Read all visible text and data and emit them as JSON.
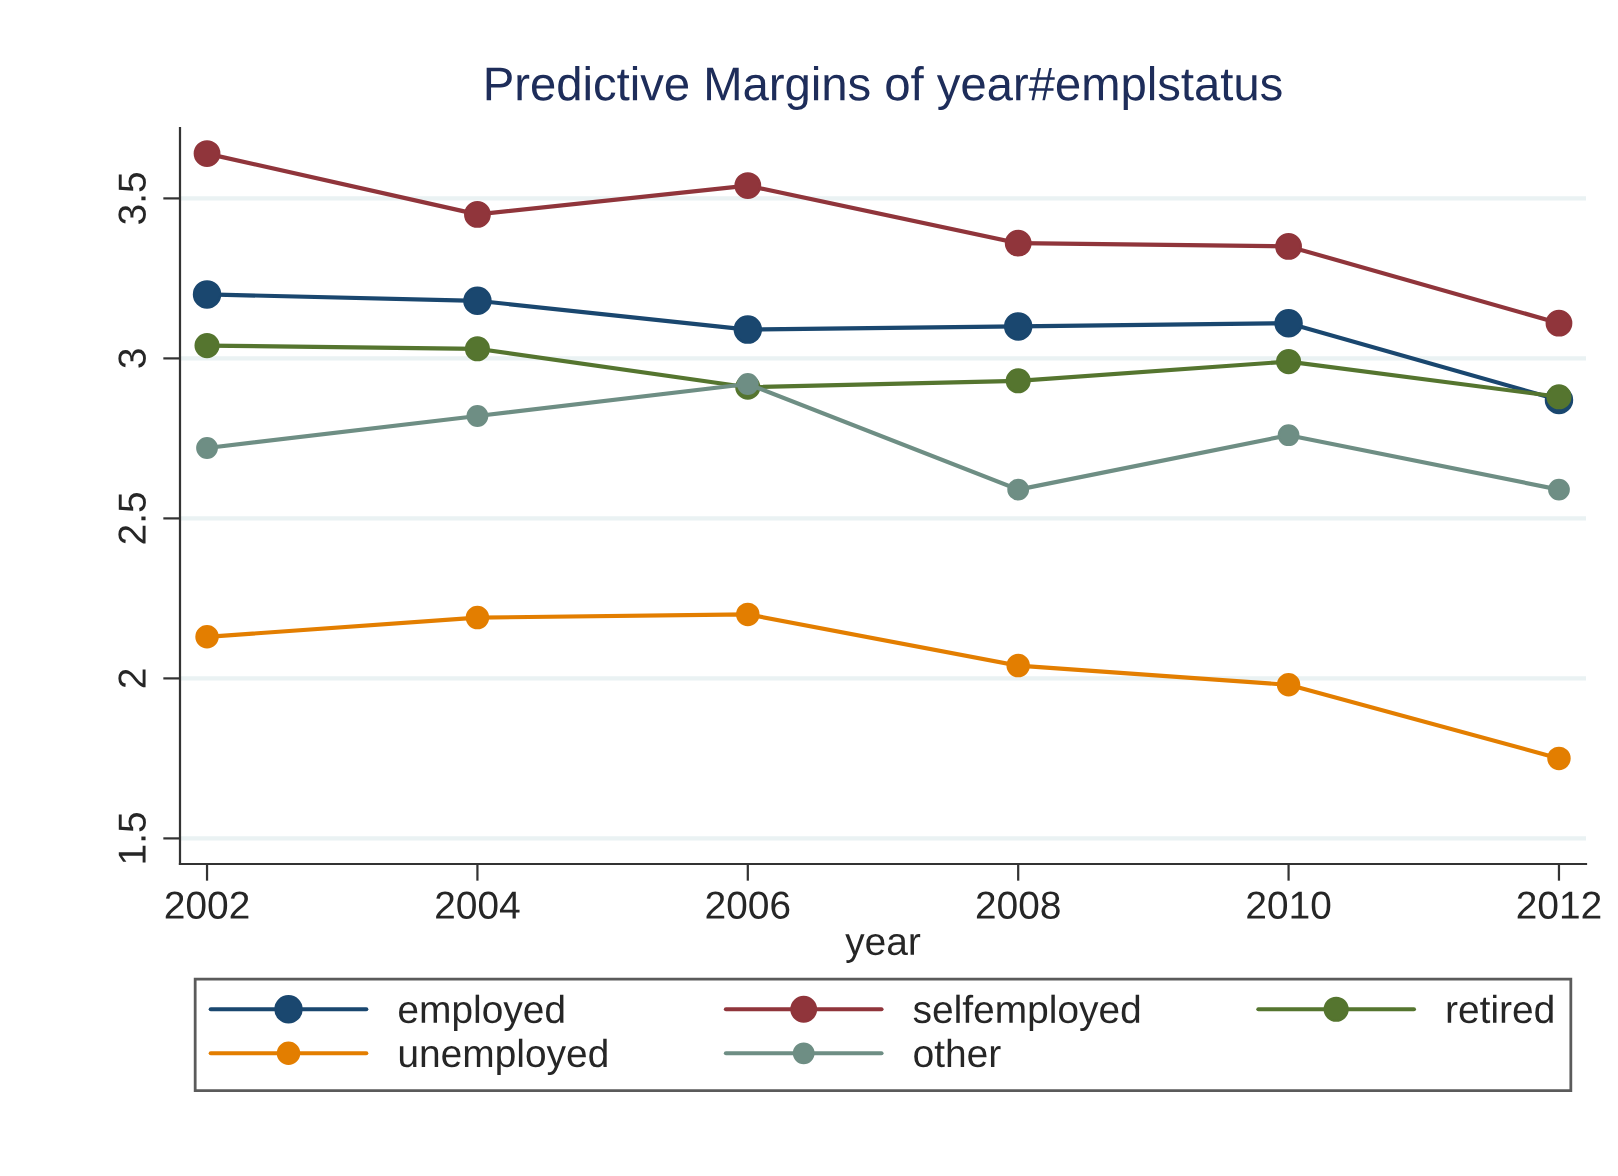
{
  "chart_data": {
    "type": "line",
    "title": "Predictive Margins of year#emplstatus",
    "xlabel": "year",
    "x": [
      2002,
      2004,
      2006,
      2008,
      2010,
      2012
    ],
    "series": [
      {
        "name": "employed",
        "color": "#1a476f",
        "values": [
          3.2,
          3.18,
          3.09,
          3.1,
          3.11,
          2.87
        ]
      },
      {
        "name": "selfemployed",
        "color": "#90353b",
        "values": [
          3.64,
          3.45,
          3.54,
          3.36,
          3.35,
          3.11
        ]
      },
      {
        "name": "retired",
        "color": "#55752f",
        "values": [
          3.04,
          3.03,
          2.91,
          2.93,
          2.99,
          2.88
        ]
      },
      {
        "name": "unemployed",
        "color": "#e37e00",
        "values": [
          2.13,
          2.19,
          2.2,
          2.04,
          1.98,
          1.75
        ]
      },
      {
        "name": "other",
        "color": "#6e8e84",
        "values": [
          2.72,
          2.82,
          2.92,
          2.59,
          2.76,
          2.59
        ]
      }
    ],
    "xlim": [
      2001.8,
      2012.2
    ],
    "xticks": [
      2002,
      2004,
      2006,
      2008,
      2010,
      2012
    ],
    "ylim": [
      1.42,
      3.72
    ],
    "yticks": [
      {
        "value": 1.5,
        "label": "1.5"
      },
      {
        "value": 2,
        "label": "2"
      },
      {
        "value": 2.5,
        "label": "2.5"
      },
      {
        "value": 3,
        "label": "3"
      },
      {
        "value": 3.5,
        "label": "3.5"
      }
    ],
    "grid": "y",
    "legend": "bottom",
    "marker": "circle",
    "line_style": "solid"
  }
}
